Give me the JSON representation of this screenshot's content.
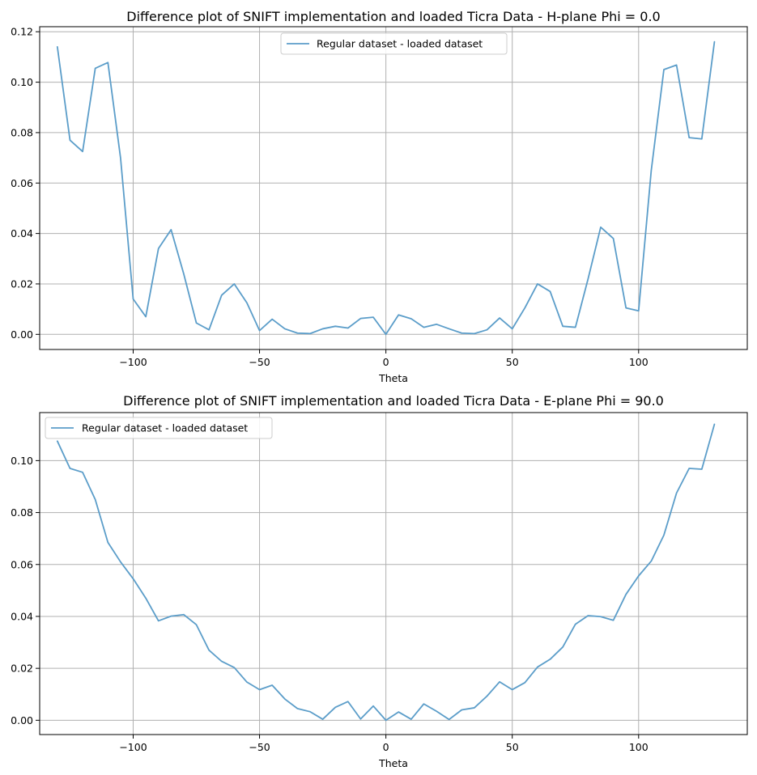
{
  "colors": {
    "series": "#5b9dc9",
    "grid": "#b0b0b0",
    "axes": "#000000"
  },
  "chart_data": [
    {
      "type": "line",
      "title": "Difference plot of SNIFT implementation and loaded Ticra Data - H-plane Phi = 0.0",
      "xlabel": "Theta",
      "ylabel": "",
      "xlim": [
        -137,
        143
      ],
      "ylim": [
        -0.006,
        0.122
      ],
      "xticks": [
        -100,
        -50,
        0,
        50,
        100
      ],
      "xtick_labels": [
        "−100",
        "−50",
        "0",
        "50",
        "100"
      ],
      "yticks": [
        0.0,
        0.02,
        0.04,
        0.06,
        0.08,
        0.1,
        0.12
      ],
      "ytick_labels": [
        "0.00",
        "0.02",
        "0.04",
        "0.06",
        "0.08",
        "0.10",
        "0.12"
      ],
      "grid": true,
      "legend_position": "top-center",
      "x": [
        -130,
        -125,
        -120,
        -115,
        -110,
        -105,
        -100,
        -95,
        -90,
        -85,
        -80,
        -75,
        -70,
        -65,
        -60,
        -55,
        -50,
        -45,
        -40,
        -35,
        -30,
        -25,
        -20,
        -15,
        -10,
        -5,
        0,
        5,
        10,
        15,
        20,
        25,
        30,
        35,
        40,
        45,
        50,
        55,
        60,
        65,
        70,
        75,
        80,
        85,
        90,
        95,
        100,
        105,
        110,
        115,
        120,
        125,
        130
      ],
      "series": [
        {
          "name": "Regular dataset - loaded dataset",
          "values": [
            0.114,
            0.077,
            0.0725,
            0.1055,
            0.1078,
            0.07,
            0.014,
            0.007,
            0.034,
            0.0415,
            0.024,
            0.0045,
            0.0018,
            0.0155,
            0.02,
            0.0125,
            0.0015,
            0.006,
            0.0022,
            0.0005,
            0.0003,
            0.0022,
            0.0032,
            0.0025,
            0.0063,
            0.0068,
            0.0,
            0.0077,
            0.0062,
            0.0028,
            0.004,
            0.0022,
            0.0005,
            0.0003,
            0.0018,
            0.0065,
            0.0022,
            0.0105,
            0.02,
            0.017,
            0.0032,
            0.0028,
            0.022,
            0.0425,
            0.038,
            0.0105,
            0.0093,
            0.065,
            0.105,
            0.1068,
            0.078,
            0.0775,
            0.116
          ]
        }
      ]
    },
    {
      "type": "line",
      "title": "Difference plot of SNIFT implementation and loaded Ticra Data - E-plane Phi = 90.0",
      "xlabel": "Theta",
      "ylabel": "",
      "xlim": [
        -137,
        143
      ],
      "ylim": [
        -0.0055,
        0.1185
      ],
      "xticks": [
        -100,
        -50,
        0,
        50,
        100
      ],
      "xtick_labels": [
        "−100",
        "−50",
        "0",
        "50",
        "100"
      ],
      "yticks": [
        0.0,
        0.02,
        0.04,
        0.06,
        0.08,
        0.1
      ],
      "ytick_labels": [
        "0.00",
        "0.02",
        "0.04",
        "0.06",
        "0.08",
        "0.10"
      ],
      "grid": true,
      "legend_position": "top-left",
      "x": [
        -130,
        -125,
        -120,
        -115,
        -110,
        -105,
        -100,
        -95,
        -90,
        -85,
        -80,
        -75,
        -70,
        -65,
        -60,
        -55,
        -50,
        -45,
        -40,
        -35,
        -30,
        -25,
        -20,
        -15,
        -10,
        -5,
        0,
        5,
        10,
        15,
        20,
        25,
        30,
        35,
        40,
        45,
        50,
        55,
        60,
        65,
        70,
        75,
        80,
        85,
        90,
        95,
        100,
        105,
        110,
        115,
        120,
        125,
        130
      ],
      "series": [
        {
          "name": "Regular dataset - loaded dataset",
          "values": [
            0.1075,
            0.097,
            0.0955,
            0.085,
            0.0685,
            0.061,
            0.0545,
            0.047,
            0.0383,
            0.0401,
            0.0407,
            0.0368,
            0.027,
            0.0227,
            0.0203,
            0.0147,
            0.0118,
            0.0135,
            0.0082,
            0.0045,
            0.0033,
            0.0004,
            0.005,
            0.0072,
            0.0005,
            0.0055,
            0.0,
            0.0032,
            0.0004,
            0.0063,
            0.0035,
            0.0003,
            0.004,
            0.0048,
            0.0093,
            0.0148,
            0.0118,
            0.0145,
            0.0205,
            0.0235,
            0.0282,
            0.037,
            0.0403,
            0.0399,
            0.0385,
            0.0485,
            0.0556,
            0.0613,
            0.0713,
            0.0875,
            0.097,
            0.0967,
            0.114
          ]
        }
      ]
    }
  ]
}
